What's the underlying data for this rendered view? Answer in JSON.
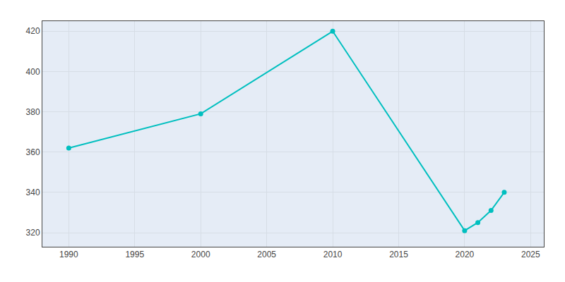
{
  "chart_data": {
    "type": "line",
    "x": [
      1990,
      2000,
      2010,
      2020,
      2021,
      2022,
      2023
    ],
    "values": [
      362,
      379,
      420,
      321,
      325,
      331,
      340
    ],
    "color": "#00BFBF",
    "marker": "circle",
    "xlim": [
      1988,
      2026
    ],
    "ylim": [
      313,
      425
    ],
    "xticks": [
      1990,
      1995,
      2000,
      2005,
      2010,
      2015,
      2020,
      2025
    ],
    "yticks": [
      320,
      340,
      360,
      380,
      400,
      420
    ],
    "grid": true
  }
}
